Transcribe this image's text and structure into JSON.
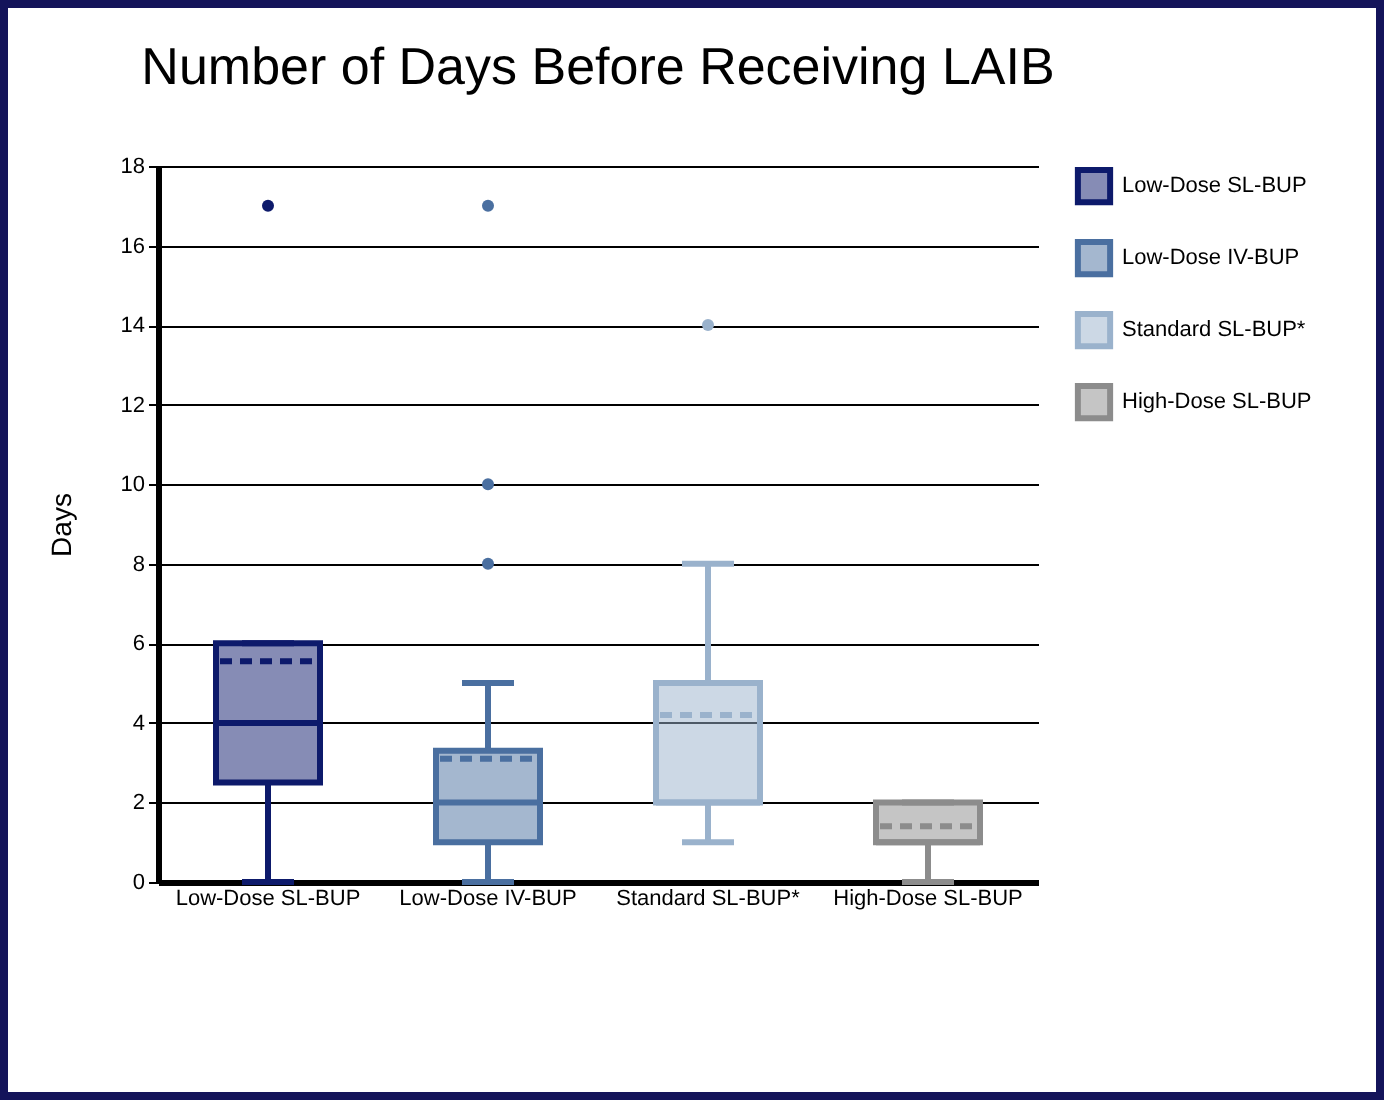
{
  "chart_data": {
    "type": "box",
    "title": "Number of Days Before Receiving LAIB",
    "ylabel": "Days",
    "categories": [
      "Low-Dose SL-BUP",
      "Low-Dose IV-BUP",
      "Standard SL-BUP*",
      "High-Dose SL-BUP"
    ],
    "series": [
      {
        "name": "Low-Dose SL-BUP",
        "color": "#0d1a6b",
        "boxes": [
          {
            "low": 0,
            "q1": 2.5,
            "median": 4,
            "q3": 6,
            "high": 6,
            "mean": 5.55,
            "outliers": [
              17
            ]
          },
          null,
          null,
          null
        ]
      },
      {
        "name": "Low-Dose IV-BUP",
        "color": "#4a6fa0",
        "boxes": [
          null,
          {
            "low": 0,
            "q1": 1,
            "median": 2,
            "q3": 3.3,
            "high": 5,
            "mean": 3.1,
            "outliers": [
              8,
              10,
              17
            ]
          },
          null,
          null
        ]
      },
      {
        "name": "Standard SL-BUP*",
        "color": "#9ab2cc",
        "boxes": [
          null,
          null,
          {
            "low": 1,
            "q1": 2,
            "median": 2,
            "q3": 5,
            "high": 8,
            "mean": 4.2,
            "outliers": [
              14
            ]
          },
          null
        ]
      },
      {
        "name": "High-Dose SL-BUP",
        "color": "#8c8c8c",
        "boxes": [
          null,
          null,
          null,
          {
            "low": 0,
            "q1": 1,
            "median": 1,
            "q3": 2,
            "high": 2,
            "mean": 1.4
          }
        ]
      }
    ],
    "ylim": [
      0,
      18
    ],
    "yticks": [
      0,
      2,
      4,
      6,
      8,
      10,
      12,
      14,
      16,
      18
    ],
    "grid": "y",
    "legend": "top right"
  }
}
